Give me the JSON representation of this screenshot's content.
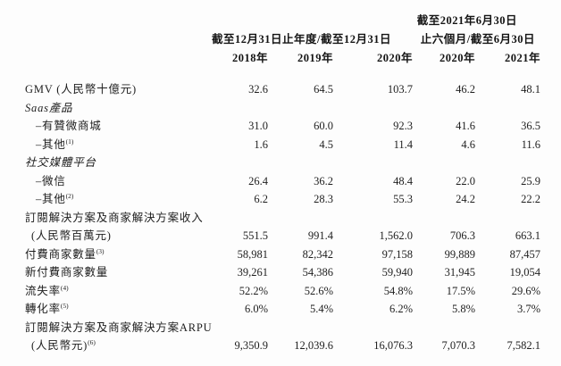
{
  "document": {
    "language": "zh-Hant",
    "text_color": "#1e1e1e",
    "background_color": "#fdfdfd"
  },
  "header": {
    "right_group_line1": "截至2021年6月30日",
    "left_group": "截至12月31日止年度/截至12月31日",
    "right_group_line2": "止六個月/截至6月30日",
    "years": [
      "2018年",
      "2019年",
      "2020年",
      "2020年",
      "2021年"
    ]
  },
  "rows": [
    {
      "label": "GMV (人民幣十億元)",
      "style": "normal",
      "indent": 0,
      "values": [
        "32.6",
        "64.5",
        "103.7",
        "46.2",
        "48.1"
      ]
    },
    {
      "label": "Saas產品",
      "style": "italic",
      "indent": 0,
      "values": []
    },
    {
      "label": "–有贊微商城",
      "style": "normal",
      "indent": 1,
      "values": [
        "31.0",
        "60.0",
        "92.3",
        "41.6",
        "36.5"
      ]
    },
    {
      "label": "–其他",
      "sup": "(1)",
      "style": "normal",
      "indent": 1,
      "values": [
        "1.6",
        "4.5",
        "11.4",
        "4.6",
        "11.6"
      ]
    },
    {
      "label": "社交媒體平台",
      "style": "italic",
      "indent": 0,
      "values": []
    },
    {
      "label": "–微信",
      "style": "normal",
      "indent": 1,
      "values": [
        "26.4",
        "36.2",
        "48.4",
        "22.0",
        "25.9"
      ]
    },
    {
      "label": "–其他",
      "sup": "(2)",
      "style": "normal",
      "indent": 1,
      "values": [
        "6.2",
        "28.3",
        "55.3",
        "24.2",
        "22.2"
      ]
    },
    {
      "label": "訂閱解決方案及商家解決方案收入",
      "label2": "(人民幣百萬元)",
      "style": "normal",
      "indent": 0,
      "values": [
        "551.5",
        "991.4",
        "1,562.0",
        "706.3",
        "663.1"
      ]
    },
    {
      "label": "付費商家數量",
      "sup": "(3)",
      "style": "normal",
      "indent": 0,
      "values": [
        "58,981",
        "82,342",
        "97,158",
        "99,889",
        "87,457"
      ]
    },
    {
      "label": "新付費商家數量",
      "style": "normal",
      "indent": 0,
      "values": [
        "39,261",
        "54,386",
        "59,940",
        "31,945",
        "19,054"
      ]
    },
    {
      "label": "流失率",
      "sup": "(4)",
      "style": "normal",
      "indent": 0,
      "values": [
        "52.2%",
        "52.6%",
        "54.8%",
        "17.5%",
        "29.6%"
      ]
    },
    {
      "label": "轉化率",
      "sup": "(5)",
      "style": "normal",
      "indent": 0,
      "values": [
        "6.0%",
        "5.4%",
        "6.2%",
        "5.8%",
        "3.7%"
      ]
    },
    {
      "label": "訂閱解決方案及商家解決方案ARPU",
      "label2": "(人民幣元)",
      "sup2": "(6)",
      "style": "normal",
      "indent": 0,
      "values": [
        "9,350.9",
        "12,039.6",
        "16,076.3",
        "7,070.3",
        "7,582.1"
      ]
    }
  ]
}
